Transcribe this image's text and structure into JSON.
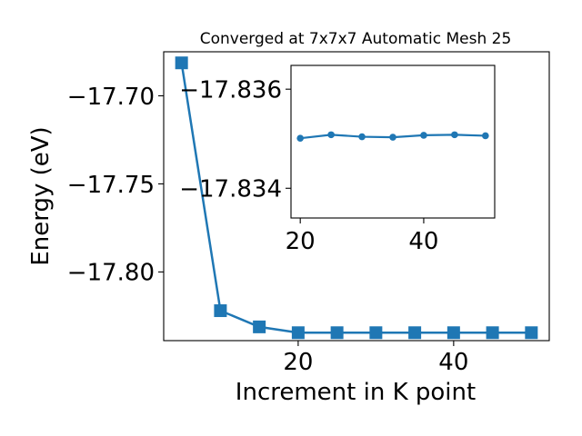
{
  "chart_data": [
    {
      "type": "line",
      "title": "Converged at 7x7x7 Automatic Mesh 25",
      "xlabel": "Increment in K point",
      "ylabel": "Energy (eV)",
      "xlim": [
        2.7,
        52.3
      ],
      "ylim": [
        -17.839,
        -17.675
      ],
      "xticks": [
        20,
        40
      ],
      "xtick_labels": [
        "20",
        "40"
      ],
      "yticks": [
        -17.7,
        -17.75,
        -17.8
      ],
      "ytick_labels": [
        "−17.70",
        "−17.75",
        "−17.80"
      ],
      "grid": false,
      "legend": "none",
      "marker": "square",
      "color": "#1f77b4",
      "series": [
        {
          "x": [
            5,
            10,
            15,
            20,
            25,
            30,
            35,
            40,
            45,
            50
          ],
          "y": [
            -17.6813,
            -17.822,
            -17.8312,
            -17.8345,
            -17.8345,
            -17.8345,
            -17.8345,
            -17.8345,
            -17.8345,
            -17.8345
          ]
        }
      ]
    },
    {
      "type": "line",
      "title": "",
      "xlabel": "",
      "ylabel": "",
      "placement": "inset-top-right",
      "xlim": [
        18.5,
        51.5
      ],
      "ylim": [
        -17.8334,
        -17.83648
      ],
      "xticks": [
        20,
        40
      ],
      "xtick_labels": [
        "20",
        "40"
      ],
      "yticks": [
        -17.836,
        -17.834
      ],
      "ytick_labels": [
        "−17.836",
        "−17.834"
      ],
      "grid": false,
      "legend": "none",
      "marker": "circle",
      "color": "#1f77b4",
      "series": [
        {
          "x": [
            20,
            25,
            30,
            35,
            40,
            45,
            50
          ],
          "y": [
            -17.83501,
            -17.83508,
            -17.83504,
            -17.83503,
            -17.83507,
            -17.83508,
            -17.83506
          ]
        }
      ]
    }
  ]
}
